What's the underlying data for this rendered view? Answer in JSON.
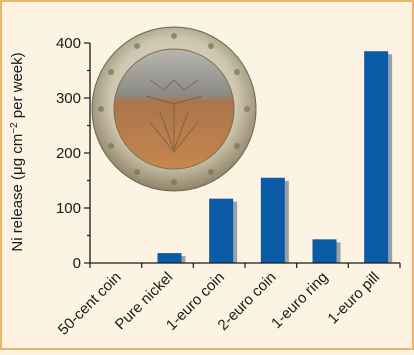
{
  "chart_data": {
    "type": "bar",
    "categories": [
      "50-cent coin",
      "Pure nickel",
      "1-euro coin",
      "2-euro coin",
      "1-euro ring",
      "1-euro pill"
    ],
    "values": [
      0,
      18,
      117,
      155,
      43,
      385
    ],
    "title": "",
    "xlabel": "",
    "ylabel_prefix": "Ni release (μg cm",
    "ylabel_sup": "−2",
    "ylabel_suffix": " per week)",
    "ylim": [
      0,
      400
    ],
    "yticks": [
      "0",
      "100",
      "200",
      "300",
      "400"
    ],
    "grid": false,
    "colors": {
      "bar": "#0a5aa6",
      "bar_shadow": "#9aa0a8",
      "background": "#fdf3e2",
      "border": "#e8a23c",
      "axis": "#1a1a1a"
    },
    "inset_image": "euro-coin-photo"
  }
}
